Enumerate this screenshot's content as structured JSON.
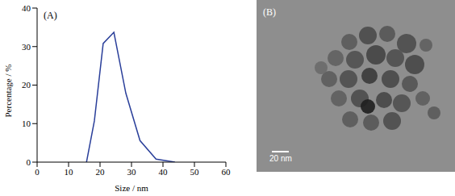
{
  "chart_data": {
    "type": "line",
    "title": "(A)",
    "x_label": "Size / nm",
    "y_label": "Percentage / %",
    "x": [
      15.7,
      18.2,
      21.0,
      24.4,
      28.2,
      32.7,
      37.8,
      43.8
    ],
    "values": [
      0,
      10.7,
      30.8,
      33.7,
      17.9,
      5.6,
      0.8,
      0
    ],
    "color": "#2a3f9a",
    "xlim": [
      0,
      60
    ],
    "xticks": [
      0,
      10,
      20,
      30,
      40,
      50,
      60
    ],
    "ylim": [
      0,
      40
    ],
    "yticks": [
      0,
      10,
      20,
      30,
      40
    ],
    "grid": false
  },
  "image": {
    "title": "(B)",
    "scale_bar": "20 nm"
  }
}
